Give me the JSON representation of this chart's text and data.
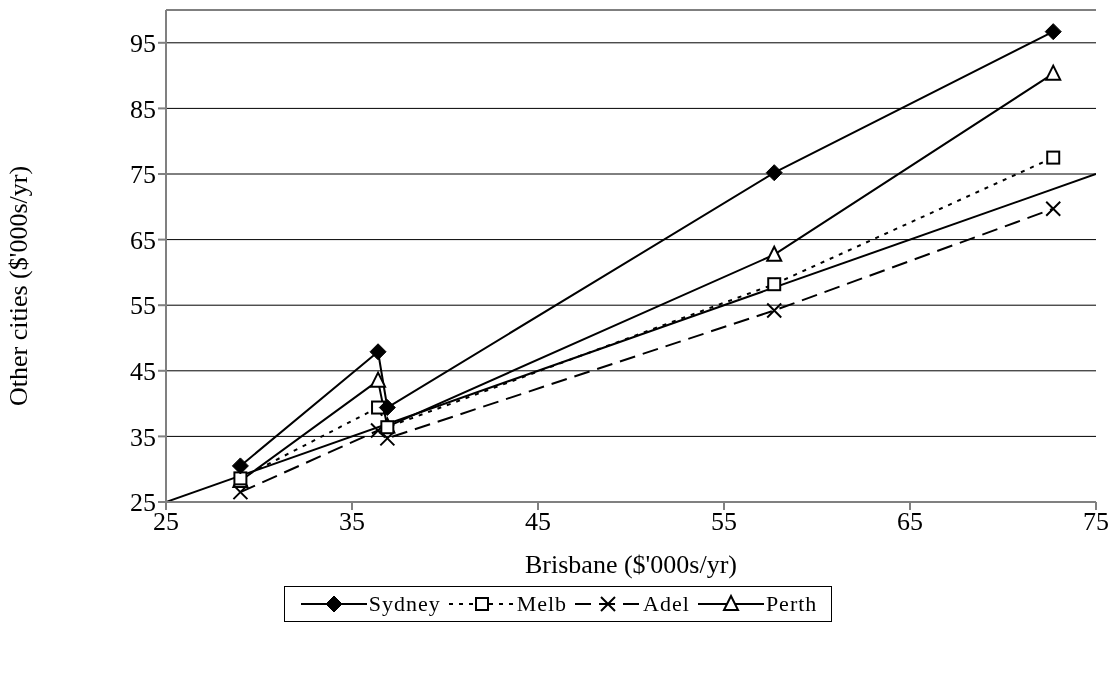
{
  "chart_data": {
    "type": "line",
    "xlabel": "Brisbane ($'000s/yr)",
    "ylabel": "Other cities ($'000s/yr)",
    "x": [
      29,
      36.4,
      36.9,
      57.7,
      72.7
    ],
    "series": [
      {
        "name": "Sydney",
        "color": "#000000",
        "marker": "diamond",
        "line_style": "solid",
        "values": [
          30.5,
          47.9,
          39.4,
          75.2,
          96.7
        ]
      },
      {
        "name": "Melb",
        "color": "#000000",
        "marker": "square",
        "line_style": "dotted",
        "values": [
          28.6,
          39.4,
          36.4,
          58.2,
          77.5
        ]
      },
      {
        "name": "Adel",
        "color": "#000000",
        "marker": "cross",
        "line_style": "dashed",
        "values": [
          26.5,
          35.9,
          34.7,
          54.2,
          69.7
        ]
      },
      {
        "name": "Perth",
        "color": "#000000",
        "marker": "triangle",
        "line_style": "solid",
        "values": [
          28.2,
          43.5,
          36.5,
          62.7,
          90.3
        ]
      },
      {
        "color": "#000000",
        "marker": "none",
        "line_style": "solid",
        "x": [
          25,
          75
        ],
        "values": [
          25,
          75
        ]
      }
    ],
    "xlim": [
      25,
      75
    ],
    "xticks": [
      25,
      35,
      45,
      55,
      65,
      75
    ],
    "ylim": [
      25,
      100
    ],
    "yticks": [
      25,
      35,
      45,
      55,
      65,
      75,
      85,
      95
    ],
    "grid": "y",
    "legend": "bottom"
  }
}
